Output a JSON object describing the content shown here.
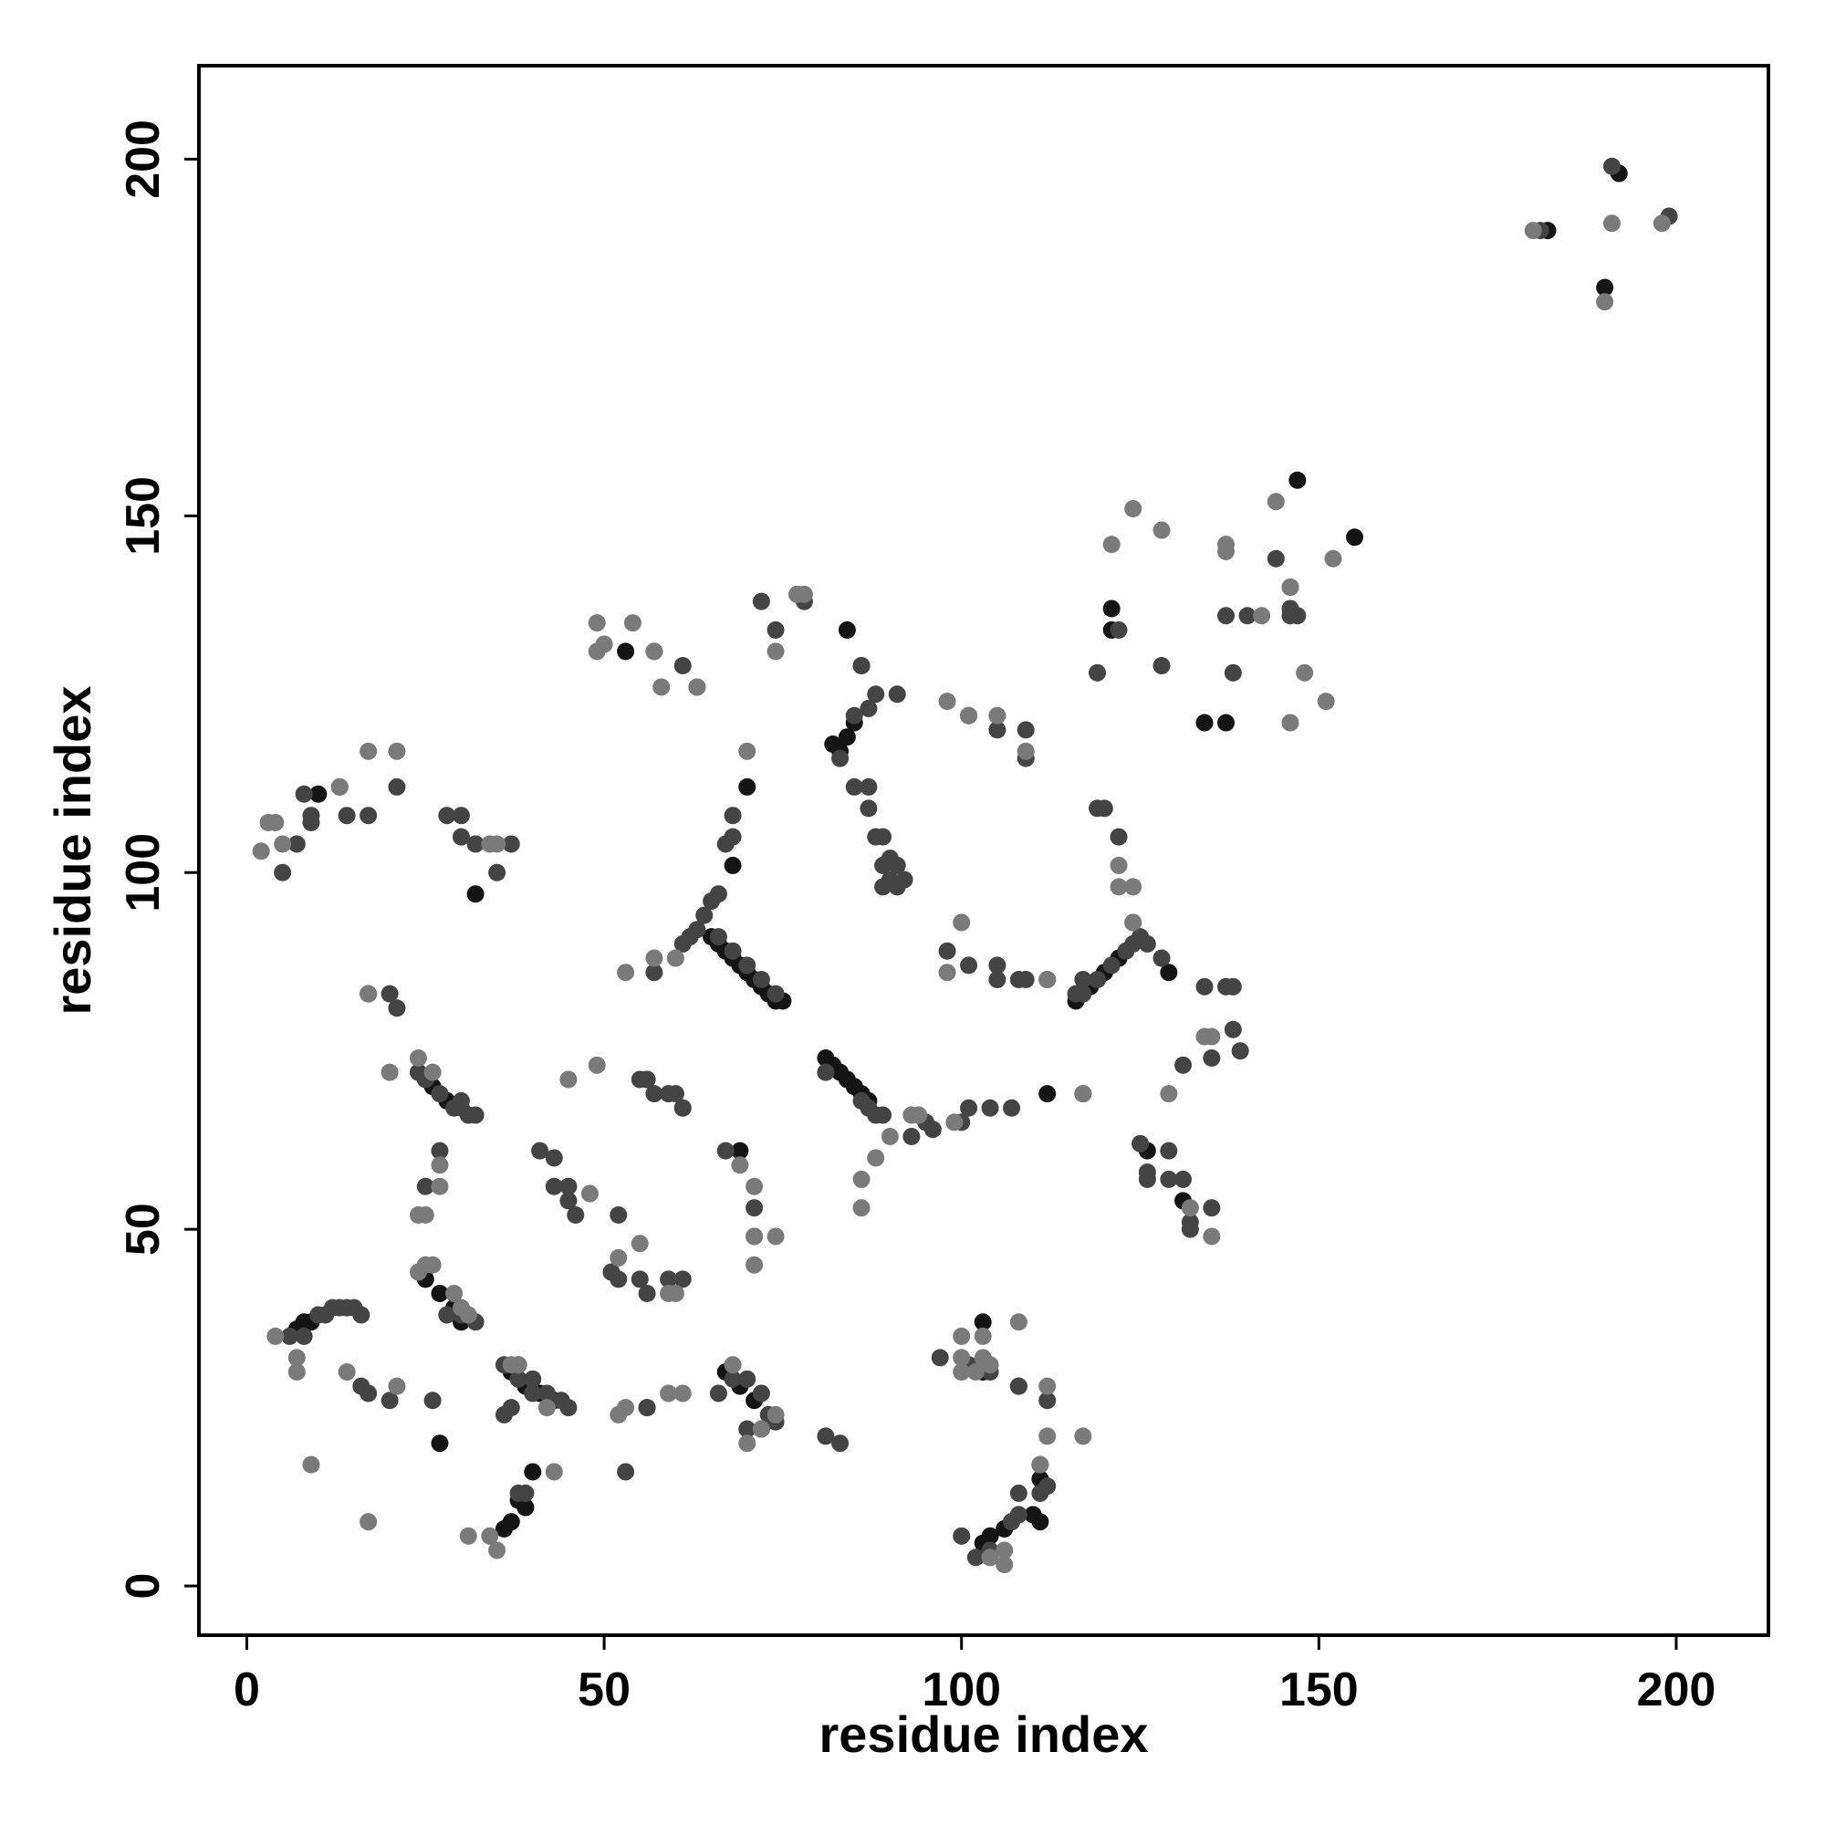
{
  "chart_data": {
    "type": "scatter",
    "xlabel": "residue index",
    "ylabel": "residue index",
    "xlim": [
      -6.7,
      212.9
    ],
    "ylim": [
      -6.9,
      213.1
    ],
    "xticks": [
      0,
      50,
      100,
      150,
      200
    ],
    "yticks": [
      0,
      50,
      100,
      150,
      200
    ],
    "series": [
      {
        "color": "#141414",
        "x": [
          65,
          66,
          67,
          68,
          69,
          70,
          71,
          72,
          73,
          74,
          75,
          82,
          84,
          85,
          83,
          116,
          118,
          120,
          122,
          81,
          82,
          83,
          84,
          85,
          86,
          87,
          7,
          8,
          9,
          25,
          27,
          29,
          37,
          39,
          41,
          43,
          36,
          37,
          38,
          39,
          67,
          69,
          71,
          103,
          104,
          106,
          107,
          111,
          111,
          103,
          147,
          155,
          121,
          121,
          137,
          134,
          86,
          84,
          53,
          10,
          32,
          28,
          26,
          40,
          27,
          192,
          190,
          182,
          112,
          70,
          68,
          129,
          131,
          126,
          69,
          30,
          103,
          110
        ],
        "y": [
          91,
          90,
          89,
          88,
          87,
          86,
          85,
          84,
          83,
          82,
          82,
          118,
          119,
          121,
          117,
          82,
          84,
          86,
          88,
          74,
          73,
          72,
          71,
          70,
          69,
          68,
          36,
          37,
          37,
          43,
          41,
          39,
          30,
          28,
          27,
          26,
          8,
          9,
          12,
          11,
          30,
          28,
          26,
          6,
          7,
          8,
          9,
          9,
          15,
          37,
          155,
          147,
          137,
          134,
          121,
          121,
          129,
          134,
          131,
          111,
          97,
          68,
          70,
          16,
          20,
          198,
          182,
          190,
          69,
          112,
          101,
          86,
          54,
          61,
          61,
          37,
          30,
          10
        ]
      },
      {
        "color": "#444444",
        "x": [
          66,
          68,
          70,
          72,
          74,
          81,
          86,
          87,
          88,
          89,
          117,
          119,
          121,
          123,
          124,
          125,
          126,
          83,
          85,
          87,
          88,
          89,
          90,
          91,
          92,
          89,
          91,
          85,
          87,
          87,
          89,
          90,
          98,
          101,
          105,
          105,
          108,
          109,
          112,
          101,
          105,
          109,
          109,
          68,
          68,
          67,
          66,
          65,
          64,
          63,
          62,
          61,
          57,
          5,
          7,
          9,
          13,
          14,
          17,
          21,
          28,
          30,
          30,
          32,
          35,
          37,
          9,
          8,
          17,
          20,
          21,
          24,
          25,
          27,
          29,
          30,
          31,
          32,
          30,
          27,
          25,
          41,
          43,
          43,
          45,
          45,
          46,
          52,
          55,
          56,
          59,
          60,
          61,
          56,
          57,
          61,
          51,
          52,
          55,
          56,
          59,
          61,
          67,
          71,
          71,
          6,
          10,
          11,
          12,
          13,
          14,
          15,
          16,
          16,
          17,
          20,
          26,
          28,
          30,
          32,
          36,
          38,
          40,
          42,
          44,
          45,
          36,
          38,
          40,
          44,
          37,
          38,
          39,
          53,
          56,
          56,
          66,
          68,
          70,
          72,
          73,
          74,
          70,
          72,
          81,
          83,
          97,
          101,
          104,
          108,
          108,
          112,
          111,
          112,
          111,
          108,
          108,
          107,
          104,
          102,
          104,
          100,
          116,
          117,
          119,
          122,
          120,
          124,
          128,
          134,
          137,
          138,
          138,
          139,
          135,
          131,
          125,
          126,
          129,
          126,
          129,
          131,
          132,
          132,
          135,
          144,
          146,
          147,
          146,
          140,
          137,
          138,
          119,
          122,
          128,
          146,
          181,
          191,
          199,
          57,
          61,
          63,
          72,
          74,
          77,
          78,
          86,
          88,
          91,
          95,
          96,
          100,
          101,
          104,
          107,
          117,
          93,
          8
        ],
        "y": [
          91,
          89,
          87,
          85,
          83,
          72,
          68,
          67,
          66,
          66,
          83,
          85,
          87,
          89,
          90,
          91,
          90,
          116,
          122,
          123,
          105,
          105,
          102,
          101,
          99,
          101,
          98,
          112,
          112,
          109,
          98,
          99,
          89,
          87,
          87,
          85,
          85,
          85,
          85,
          122,
          120,
          120,
          116,
          108,
          105,
          104,
          97,
          96,
          94,
          92,
          91,
          90,
          86,
          100,
          104,
          107,
          112,
          108,
          108,
          112,
          108,
          108,
          105,
          104,
          100,
          104,
          108,
          35,
          83,
          83,
          81,
          72,
          71,
          69,
          67,
          67,
          66,
          66,
          68,
          61,
          56,
          61,
          60,
          56,
          54,
          56,
          52,
          52,
          71,
          71,
          69,
          69,
          67,
          71,
          69,
          67,
          44,
          43,
          43,
          41,
          43,
          43,
          61,
          53,
          49,
          35,
          38,
          38,
          39,
          39,
          39,
          39,
          38,
          28,
          27,
          26,
          26,
          38,
          38,
          37,
          31,
          31,
          29,
          27,
          26,
          25,
          24,
          29,
          27,
          26,
          25,
          13,
          13,
          16,
          25,
          25,
          27,
          29,
          29,
          27,
          24,
          23,
          22,
          22,
          21,
          20,
          32,
          31,
          30,
          28,
          28,
          26,
          17,
          14,
          13,
          10,
          13,
          9,
          4,
          4,
          5,
          7,
          83,
          85,
          109,
          105,
          109,
          93,
          88,
          84,
          84,
          84,
          78,
          75,
          74,
          73,
          62,
          58,
          61,
          57,
          57,
          57,
          51,
          50,
          53,
          144,
          140,
          136,
          137,
          136,
          136,
          128,
          128,
          134,
          129,
          136,
          190,
          199,
          192,
          131,
          129,
          126,
          138,
          134,
          139,
          138,
          129,
          125,
          125,
          65,
          64,
          65,
          67,
          67,
          67,
          69,
          63,
          111
        ],
        "r": 1
      },
      {
        "color": "#7a7a7a",
        "x": [
          180,
          190,
          191,
          198,
          144,
          152,
          124,
          121,
          128,
          137,
          137,
          142,
          146,
          148,
          146,
          151,
          98,
          101,
          105,
          109,
          49,
          50,
          54,
          57,
          58,
          63,
          70,
          74,
          77,
          78,
          49,
          60,
          53,
          57,
          100,
          112,
          117,
          98,
          122,
          124,
          122,
          124,
          2,
          3,
          4,
          5,
          17,
          21,
          13,
          35,
          34,
          17,
          24,
          20,
          26,
          27,
          27,
          24,
          25,
          48,
          49,
          45,
          69,
          71,
          74,
          71,
          55,
          52,
          59,
          60,
          86,
          86,
          88,
          93,
          94,
          90,
          99,
          135,
          134,
          129,
          132,
          135,
          4,
          7,
          7,
          14,
          21,
          24,
          26,
          25,
          31,
          29,
          30,
          17,
          9,
          52,
          53,
          59,
          61,
          43,
          42,
          37,
          38,
          35,
          31,
          34,
          68,
          70,
          74,
          72,
          100,
          100,
          103,
          103,
          104,
          102,
          100,
          108,
          112,
          112,
          117,
          111,
          104,
          106,
          106,
          71
        ],
        "y": [
          190,
          180,
          191,
          191,
          152,
          144,
          151,
          146,
          148,
          146,
          145,
          136,
          140,
          128,
          121,
          124,
          124,
          122,
          122,
          117,
          135,
          132,
          135,
          131,
          126,
          126,
          117,
          131,
          139,
          139,
          131,
          88,
          86,
          88,
          93,
          85,
          69,
          86,
          101,
          98,
          98,
          93,
          103,
          107,
          107,
          104,
          117,
          117,
          112,
          104,
          104,
          83,
          74,
          72,
          72,
          59,
          56,
          52,
          52,
          55,
          73,
          71,
          59,
          56,
          49,
          45,
          48,
          46,
          41,
          41,
          53,
          57,
          60,
          66,
          66,
          63,
          65,
          77,
          77,
          69,
          53,
          49,
          35,
          32,
          30,
          30,
          28,
          44,
          45,
          45,
          38,
          41,
          39,
          9,
          17,
          24,
          25,
          27,
          27,
          16,
          25,
          31,
          31,
          5,
          7,
          7,
          31,
          20,
          24,
          22,
          35,
          32,
          35,
          32,
          31,
          30,
          30,
          37,
          28,
          21,
          21,
          17,
          4,
          3,
          5,
          49
        ],
        "r": 2
      }
    ]
  }
}
